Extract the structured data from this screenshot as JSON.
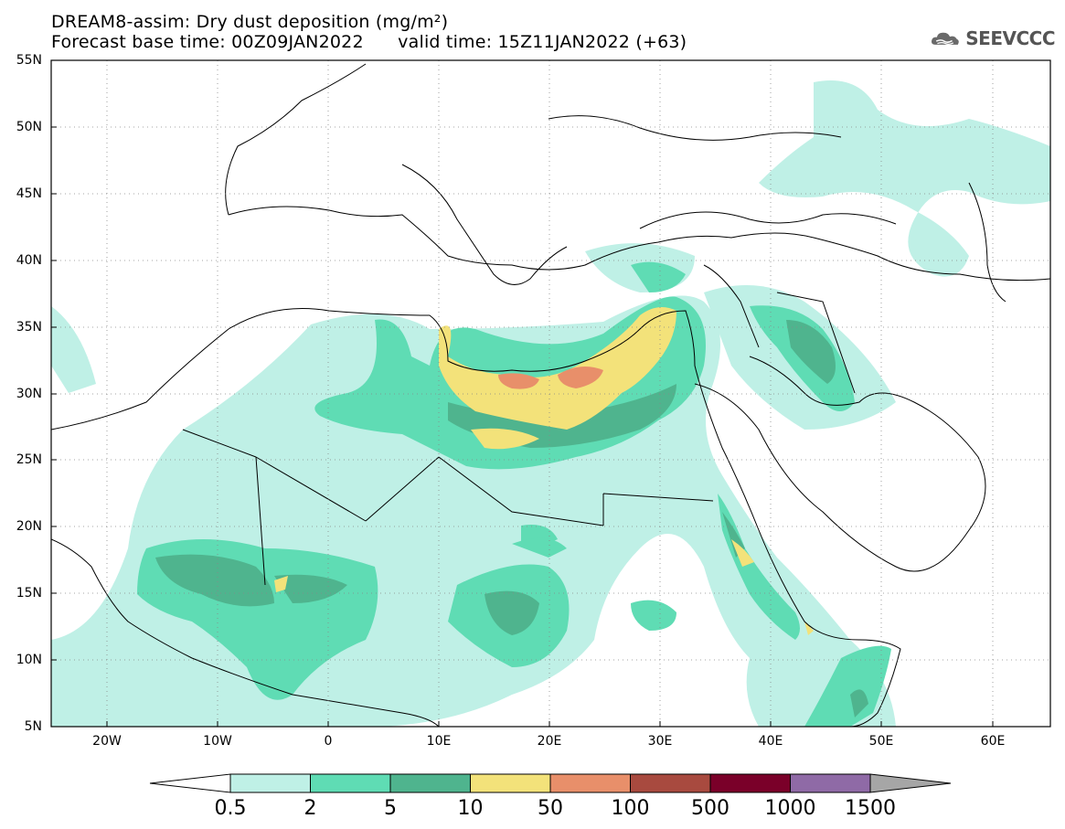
{
  "title": {
    "line1": "DREAM8-assim: Dry dust deposition (mg/m²)",
    "line2": "Forecast base time: 00Z09JAN2022      valid time: 15Z11JAN2022 (+63)"
  },
  "logo": {
    "text": "SEEVCCC",
    "icon": "cloud-icon"
  },
  "map": {
    "lat_range": [
      5,
      55
    ],
    "lon_range": [
      -25,
      65
    ],
    "lat_labels": [
      "55N",
      "50N",
      "45N",
      "40N",
      "35N",
      "30N",
      "25N",
      "20N",
      "15N",
      "10N",
      "5N"
    ],
    "lon_labels": [
      "20W",
      "10W",
      "0",
      "10E",
      "20E",
      "30E",
      "40E",
      "50E",
      "60E"
    ],
    "gridlines": true
  },
  "colorbar": {
    "labels": [
      "0.5",
      "2",
      "5",
      "10",
      "50",
      "100",
      "500",
      "1000",
      "1500"
    ],
    "colors": [
      "#bff0e6",
      "#5fdcb4",
      "#4fb48e",
      "#f3e27a",
      "#e88f6a",
      "#a84a3f",
      "#7a0029",
      "#8f6aa6"
    ],
    "under_color": "#ffffff",
    "over_color": "#a6a6a6"
  }
}
